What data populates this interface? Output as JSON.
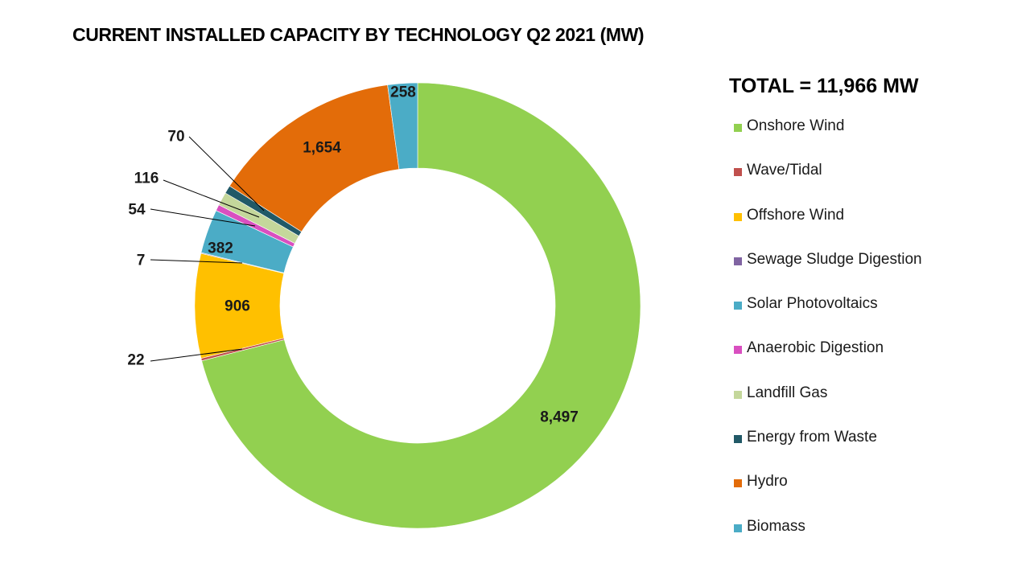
{
  "chart_data": {
    "type": "pie",
    "style": "donut",
    "title": "CURRENT INSTALLED CAPACITY BY TECHNOLOGY Q2 2021 (MW)",
    "total_label": "TOTAL = 11,966 MW",
    "legend_position": "right",
    "slices": [
      {
        "name": "Onshore Wind",
        "value": 8497,
        "label": "8,497",
        "color": "#92d050"
      },
      {
        "name": "Wave/Tidal",
        "value": 22,
        "label": "22",
        "color": "#c0504d"
      },
      {
        "name": "Offshore Wind",
        "value": 906,
        "label": "906",
        "color": "#ffc000"
      },
      {
        "name": "Sewage Sludge Digestion",
        "value": 7,
        "label": "7",
        "color": "#8064a2"
      },
      {
        "name": "Solar Photovoltaics",
        "value": 382,
        "label": "382",
        "color": "#4bacc6"
      },
      {
        "name": "Anaerobic Digestion",
        "value": 54,
        "label": "54",
        "color": "#d94fc0"
      },
      {
        "name": "Landfill Gas",
        "value": 116,
        "label": "116",
        "color": "#c4d79b"
      },
      {
        "name": "Energy from Waste",
        "value": 70,
        "label": "70",
        "color": "#215967"
      },
      {
        "name": "Hydro",
        "value": 1654,
        "label": "1,654",
        "color": "#e36c09"
      },
      {
        "name": "Biomass",
        "value": 258,
        "label": "258",
        "color": "#4bacc6"
      }
    ]
  }
}
